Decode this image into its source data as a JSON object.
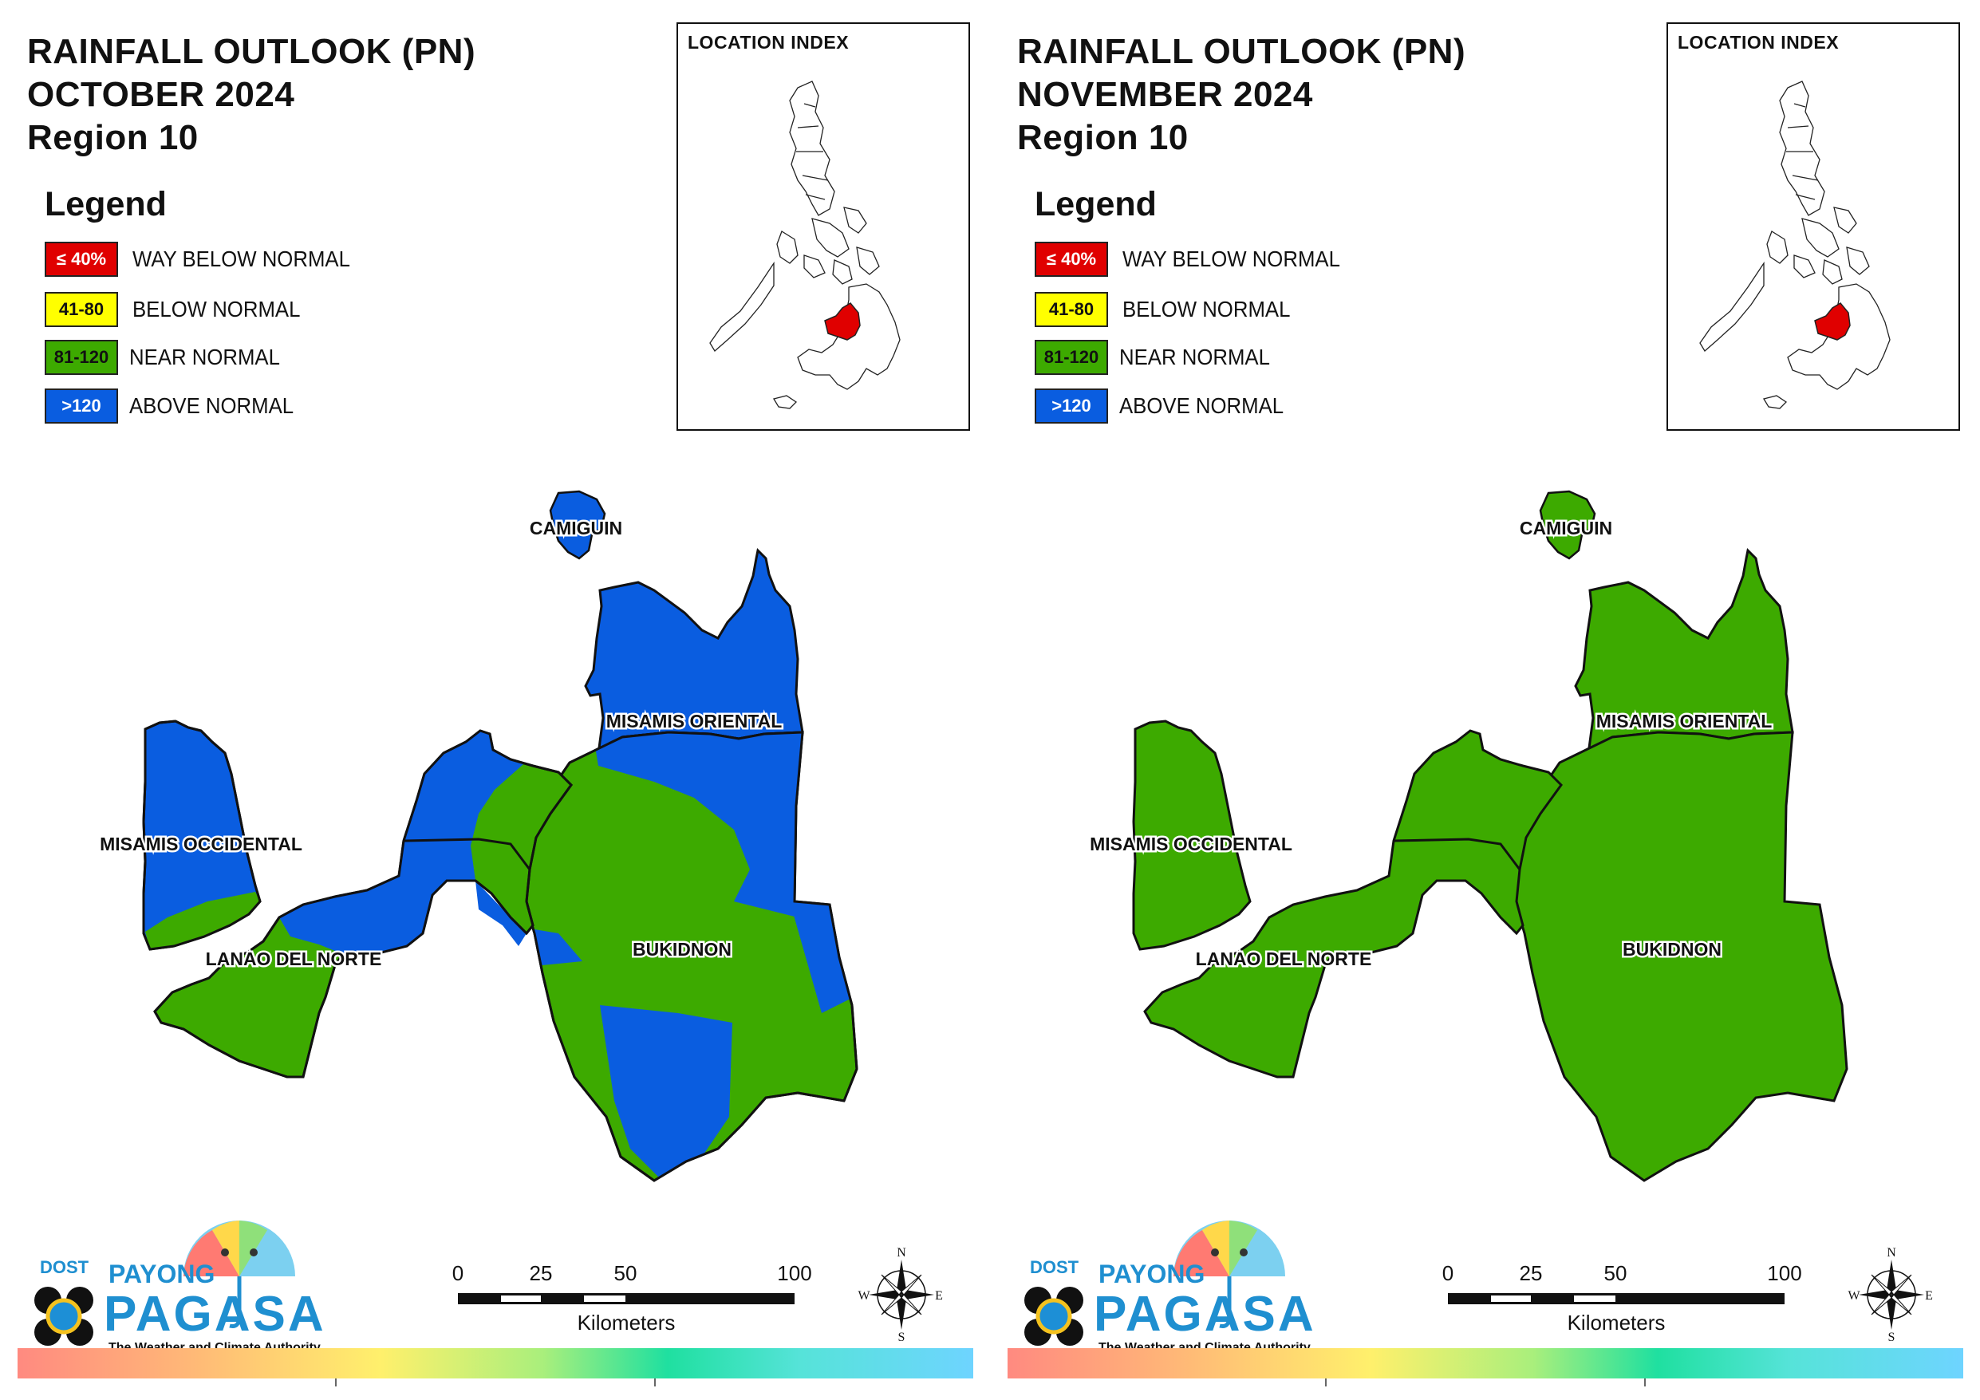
{
  "panels": [
    {
      "title_line1": "RAINFALL OUTLOOK (PN)",
      "title_line2": "OCTOBER 2024",
      "title_line3": "Region 10",
      "inset_title": "LOCATION INDEX",
      "provinces": {
        "camiguin": {
          "label": "CAMIGUIN",
          "category": "above_normal"
        },
        "misamis_oriental": {
          "label": "MISAMIS ORIENTAL",
          "category": "mixed_above_near"
        },
        "misamis_occidental": {
          "label": "MISAMIS OCCIDENTAL",
          "category": "mixed_above_near"
        },
        "lanao_del_norte": {
          "label": "LANAO DEL NORTE",
          "category": "mixed_near_above"
        },
        "bukidnon": {
          "label": "BUKIDNON",
          "category": "mixed_near_above"
        }
      }
    },
    {
      "title_line1": "RAINFALL OUTLOOK (PN)",
      "title_line2": "NOVEMBER 2024",
      "title_line3": "Region 10",
      "inset_title": "LOCATION INDEX",
      "provinces": {
        "camiguin": {
          "label": "CAMIGUIN",
          "category": "near_normal"
        },
        "misamis_oriental": {
          "label": "MISAMIS ORIENTAL",
          "category": "near_normal"
        },
        "misamis_occidental": {
          "label": "MISAMIS OCCIDENTAL",
          "category": "near_normal"
        },
        "lanao_del_norte": {
          "label": "LANAO DEL NORTE",
          "category": "near_normal"
        },
        "bukidnon": {
          "label": "BUKIDNON",
          "category": "near_normal"
        }
      }
    }
  ],
  "legend": {
    "title": "Legend",
    "items": [
      {
        "range": "≤ 40%",
        "label": "WAY BELOW NORMAL",
        "color": "#e00000"
      },
      {
        "range": "41-80",
        "label": "BELOW NORMAL",
        "color": "#ffff00"
      },
      {
        "range": "81-120",
        "label": "NEAR NORMAL",
        "color": "#3daa00"
      },
      {
        "range": ">120",
        "label": "ABOVE NORMAL",
        "color": "#0a5de0"
      }
    ]
  },
  "scale": {
    "ticks": [
      "0",
      "25",
      "50",
      "100"
    ],
    "unit": "Kilometers"
  },
  "compass": {
    "n": "N",
    "s": "S",
    "e": "E",
    "w": "W"
  },
  "logo": {
    "dost": "DOST",
    "payong": "PAYONG",
    "pagasa": "PAGASA",
    "tagline": "The Weather and Climate Authority"
  },
  "colors": {
    "above_normal": "#0a5de0",
    "near_normal": "#3daa00",
    "highlight_region": "#e00000"
  }
}
